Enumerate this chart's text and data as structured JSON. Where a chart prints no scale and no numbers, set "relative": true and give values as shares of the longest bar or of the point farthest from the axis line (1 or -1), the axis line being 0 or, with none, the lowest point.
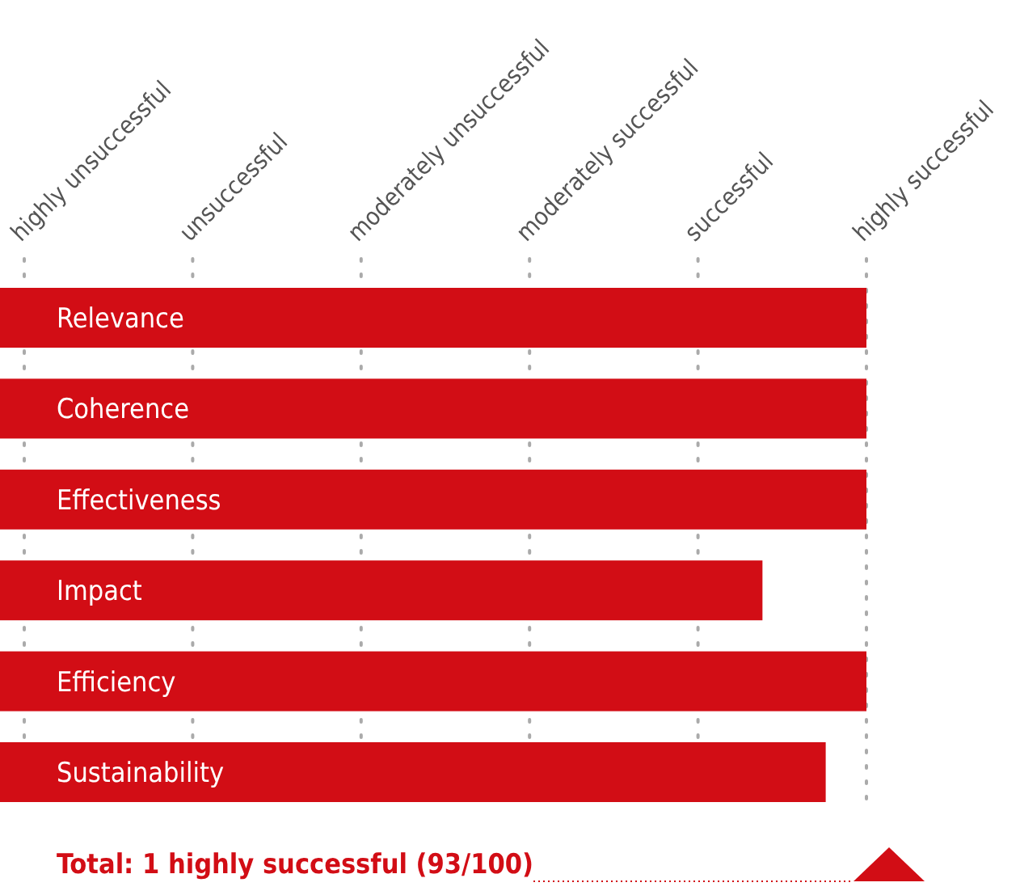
{
  "chart_data": {
    "type": "bar",
    "orientation": "horizontal",
    "relative": true,
    "categories": [
      "Relevance",
      "Coherence",
      "Effectiveness",
      "Impact",
      "Efficiency",
      "Sustainability"
    ],
    "values": [
      1,
      1,
      1,
      0.88,
      1,
      0.953
    ],
    "color": "#d20d15",
    "grid": "x",
    "annotations": [
      "highly unsuccessful",
      "unsuccessful",
      "moderately unsuccessful",
      "moderately successful",
      "successful",
      "highly successful",
      "Total: 1 highly successful (93/100)"
    ]
  }
}
